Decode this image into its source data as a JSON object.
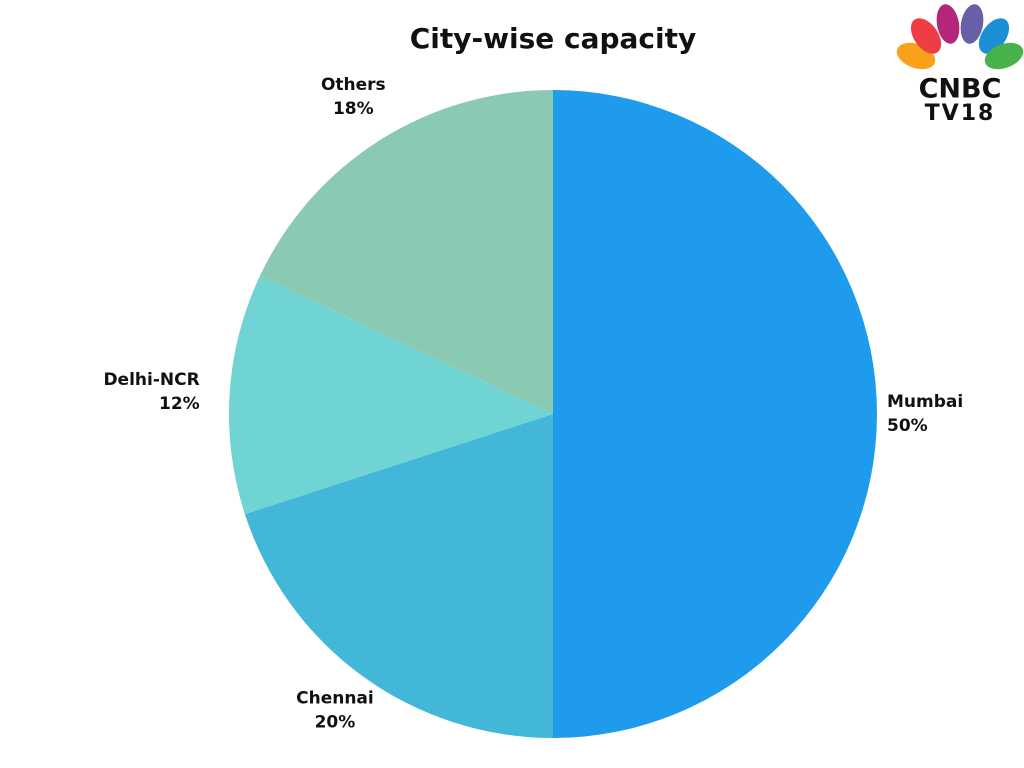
{
  "chart_data": {
    "type": "pie",
    "title": "City-wise capacity",
    "categories": [
      "Mumbai",
      "Chennai",
      "Delhi-NCR",
      "Others"
    ],
    "values": [
      50,
      20,
      12,
      18
    ],
    "value_labels": [
      "50%",
      "20%",
      "12%",
      "18%"
    ],
    "colors": [
      "#1e9bec",
      "#42b7d8",
      "#70d4d4",
      "#8bcab2"
    ]
  },
  "logo": {
    "line1": "CNBC",
    "line2": "TV18"
  }
}
